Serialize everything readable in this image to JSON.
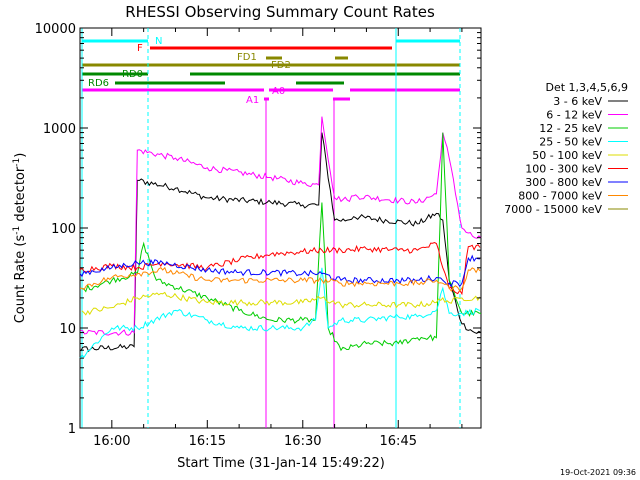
{
  "chart_data": {
    "type": "line",
    "title": "RHESSI Observing Summary Count Rates",
    "xlabel": "Start Time (31-Jan-14 15:49:22)",
    "ylabel": "Count Rate (s",
    "ylabel_sup1": "-1",
    "ylabel_mid": " detector",
    "ylabel_sup2": "-1",
    "ylabel_end": ")",
    "y_scale": "log",
    "ylim": [
      1,
      10000
    ],
    "xlim_minutes": [
      -5,
      58
    ],
    "x_ticks": [
      {
        "label": "16:00",
        "minutes": 0
      },
      {
        "label": "16:15",
        "minutes": 15
      },
      {
        "label": "16:30",
        "minutes": 30
      },
      {
        "label": "16:45",
        "minutes": 45
      },
      {
        "label": "17:00",
        "minutes": 60
      },
      {
        "label": "17:15",
        "minutes": 75
      }
    ],
    "y_ticks": [
      {
        "label": "1",
        "value": 1
      },
      {
        "label": "10",
        "value": 10
      },
      {
        "label": "100",
        "value": 100
      },
      {
        "label": "1000",
        "value": 1000
      },
      {
        "label": "10000",
        "value": 10000
      }
    ],
    "legend_title": "Det 1,3,4,5,6,9",
    "legend_position": "right",
    "series": [
      {
        "name": "3 - 6 keV",
        "color": "#000000",
        "points": [
          [
            -10.6,
            7
          ],
          [
            -8.5,
            8
          ],
          [
            -8,
            6
          ],
          [
            3.5,
            6.5
          ],
          [
            4,
            300
          ],
          [
            10,
            250
          ],
          [
            15,
            200
          ],
          [
            25,
            180
          ],
          [
            30,
            170
          ],
          [
            32.5,
            170
          ],
          [
            33,
            900
          ],
          [
            35,
            120
          ],
          [
            37,
            120
          ],
          [
            38,
            130
          ],
          [
            48,
            110
          ],
          [
            51,
            140
          ],
          [
            52,
            120
          ],
          [
            53,
            30
          ],
          [
            55,
            11
          ],
          [
            57,
            9
          ],
          [
            58,
            9
          ],
          [
            60,
            140
          ],
          [
            65,
            100
          ],
          [
            67,
            90
          ],
          [
            68,
            40
          ],
          [
            69,
            5
          ],
          [
            71,
            4
          ]
        ]
      },
      {
        "name": "6 - 12 keV",
        "color": "#ff00ff",
        "points": [
          [
            -10.6,
            9
          ],
          [
            -8.5,
            10
          ],
          [
            -8,
            9
          ],
          [
            3.5,
            9
          ],
          [
            4,
            600
          ],
          [
            10,
            500
          ],
          [
            15,
            400
          ],
          [
            25,
            320
          ],
          [
            30,
            280
          ],
          [
            32.5,
            270
          ],
          [
            33,
            1300
          ],
          [
            35,
            200
          ],
          [
            37,
            190
          ],
          [
            38,
            210
          ],
          [
            48,
            180
          ],
          [
            51,
            220
          ],
          [
            52,
            900
          ],
          [
            53,
            500
          ],
          [
            55,
            100
          ],
          [
            57,
            80
          ],
          [
            58,
            80
          ],
          [
            60,
            240
          ],
          [
            65,
            140
          ],
          [
            67,
            100
          ],
          [
            68,
            80
          ],
          [
            69,
            30
          ],
          [
            71,
            20
          ]
        ]
      },
      {
        "name": "12 - 25 keV",
        "color": "#00cc00",
        "points": [
          [
            -10.6,
            14
          ],
          [
            -8.5,
            20
          ],
          [
            0,
            30
          ],
          [
            4,
            35
          ],
          [
            5,
            70
          ],
          [
            7,
            30
          ],
          [
            15,
            20
          ],
          [
            20,
            15
          ],
          [
            25,
            12
          ],
          [
            30,
            12
          ],
          [
            32,
            12
          ],
          [
            33,
            180
          ],
          [
            34,
            10
          ],
          [
            36,
            6
          ],
          [
            40,
            7
          ],
          [
            45,
            7
          ],
          [
            48,
            8
          ],
          [
            51,
            8
          ],
          [
            52,
            900
          ],
          [
            53,
            30
          ],
          [
            55,
            14
          ],
          [
            58,
            14
          ],
          [
            60,
            18
          ],
          [
            65,
            8
          ],
          [
            68,
            9
          ],
          [
            69,
            5
          ],
          [
            71,
            4
          ]
        ]
      },
      {
        "name": "25 - 50 keV",
        "color": "#00ffff",
        "points": [
          [
            -10.6,
            3
          ],
          [
            -8,
            4
          ],
          [
            -5,
            5
          ],
          [
            0,
            10
          ],
          [
            4,
            10
          ],
          [
            10,
            15
          ],
          [
            15,
            12
          ],
          [
            20,
            10
          ],
          [
            25,
            10
          ],
          [
            30,
            10
          ],
          [
            32,
            12
          ],
          [
            33,
            40
          ],
          [
            34,
            10
          ],
          [
            36,
            12
          ],
          [
            40,
            12
          ],
          [
            45,
            13
          ],
          [
            48,
            13
          ],
          [
            51,
            15
          ],
          [
            52,
            25
          ],
          [
            53,
            14
          ],
          [
            55,
            14
          ],
          [
            60,
            16
          ],
          [
            65,
            16
          ],
          [
            67,
            16
          ],
          [
            68,
            3
          ],
          [
            72,
            4
          ],
          [
            78,
            4
          ]
        ]
      },
      {
        "name": "50 - 100 keV",
        "color": "#dddd00",
        "points": [
          [
            -10.6,
            12
          ],
          [
            -8.5,
            13
          ],
          [
            0,
            16
          ],
          [
            4,
            20
          ],
          [
            8,
            22
          ],
          [
            15,
            18
          ],
          [
            20,
            18
          ],
          [
            25,
            18
          ],
          [
            30,
            18
          ],
          [
            33,
            20
          ],
          [
            36,
            17
          ],
          [
            40,
            17
          ],
          [
            45,
            17
          ],
          [
            48,
            17
          ],
          [
            51,
            18
          ],
          [
            52,
            20
          ],
          [
            53,
            18
          ],
          [
            55,
            20
          ],
          [
            60,
            20
          ],
          [
            65,
            20
          ],
          [
            67,
            20
          ],
          [
            68,
            13
          ],
          [
            72,
            13
          ],
          [
            78,
            13
          ]
        ]
      },
      {
        "name": "100 - 300 keV",
        "color": "#ff0000",
        "points": [
          [
            -10.6,
            30
          ],
          [
            -8.5,
            32
          ],
          [
            -5,
            38
          ],
          [
            0,
            42
          ],
          [
            4,
            40
          ],
          [
            8,
            45
          ],
          [
            15,
            40
          ],
          [
            20,
            48
          ],
          [
            25,
            55
          ],
          [
            30,
            58
          ],
          [
            33,
            60
          ],
          [
            36,
            60
          ],
          [
            40,
            62
          ],
          [
            45,
            60
          ],
          [
            48,
            60
          ],
          [
            51,
            70
          ],
          [
            52,
            40
          ],
          [
            53,
            25
          ],
          [
            55,
            22
          ],
          [
            56,
            65
          ],
          [
            60,
            65
          ],
          [
            65,
            60
          ],
          [
            67,
            60
          ],
          [
            68,
            35
          ],
          [
            72,
            35
          ],
          [
            78,
            35
          ]
        ]
      },
      {
        "name": "300 - 800 keV",
        "color": "#0000ff",
        "points": [
          [
            -10.6,
            25
          ],
          [
            -8.5,
            28
          ],
          [
            -5,
            35
          ],
          [
            0,
            40
          ],
          [
            4,
            45
          ],
          [
            8,
            45
          ],
          [
            15,
            38
          ],
          [
            20,
            36
          ],
          [
            25,
            36
          ],
          [
            30,
            35
          ],
          [
            33,
            35
          ],
          [
            36,
            30
          ],
          [
            40,
            30
          ],
          [
            45,
            30
          ],
          [
            48,
            30
          ],
          [
            51,
            32
          ],
          [
            52,
            30
          ],
          [
            53,
            28
          ],
          [
            55,
            28
          ],
          [
            56,
            50
          ],
          [
            60,
            50
          ],
          [
            65,
            50
          ],
          [
            67,
            50
          ],
          [
            68,
            28
          ],
          [
            72,
            28
          ],
          [
            78,
            28
          ]
        ]
      },
      {
        "name": "800 - 7000 keV",
        "color": "#ff8800",
        "points": [
          [
            -10.6,
            18
          ],
          [
            -8.5,
            20
          ],
          [
            -5,
            25
          ],
          [
            0,
            32
          ],
          [
            4,
            35
          ],
          [
            8,
            38
          ],
          [
            15,
            30
          ],
          [
            20,
            30
          ],
          [
            25,
            30
          ],
          [
            30,
            30
          ],
          [
            33,
            30
          ],
          [
            36,
            28
          ],
          [
            40,
            28
          ],
          [
            45,
            28
          ],
          [
            48,
            28
          ],
          [
            51,
            30
          ],
          [
            52,
            28
          ],
          [
            53,
            25
          ],
          [
            55,
            25
          ],
          [
            56,
            38
          ],
          [
            60,
            38
          ],
          [
            65,
            38
          ],
          [
            67,
            38
          ],
          [
            68,
            18
          ],
          [
            72,
            18
          ],
          [
            78,
            18
          ]
        ]
      },
      {
        "name": "7000 - 15000 keV",
        "color": "#888800",
        "points": []
      }
    ]
  },
  "annotations": {
    "flags": [
      {
        "label": "N",
        "color": "#00ffff"
      },
      {
        "label": "F",
        "color": "#ff0000"
      },
      {
        "label": "FD1",
        "color": "#888800"
      },
      {
        "label": "FD2",
        "color": "#888800"
      },
      {
        "label": "RD0",
        "color": "#008800"
      },
      {
        "label": "RD6",
        "color": "#008800"
      },
      {
        "label": "A0",
        "color": "#ff00ff"
      },
      {
        "label": "A1",
        "color": "#ff00ff"
      }
    ]
  },
  "timestamp": "19-Oct-2021 09:36"
}
